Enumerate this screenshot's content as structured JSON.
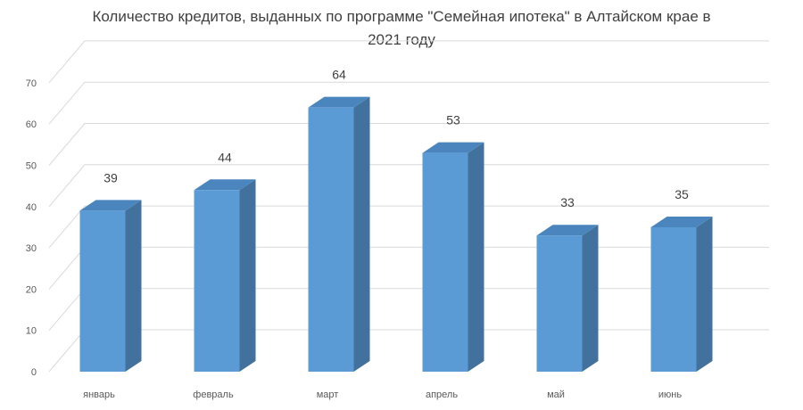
{
  "chart_data": {
    "type": "bar",
    "title": "Количество кредитов, выданных по программе \"Семейная ипотека\" в Алтайском крае в 2021 году",
    "categories": [
      "январь",
      "февраль",
      "март",
      "апрель",
      "май",
      "июнь"
    ],
    "series": [
      {
        "values": [
          39,
          44,
          64,
          53,
          33,
          35
        ]
      }
    ],
    "ylim": [
      0,
      70
    ],
    "yticks": [
      0,
      10,
      20,
      30,
      40,
      50,
      60,
      70
    ],
    "grid": true,
    "three_d": true,
    "data_labels": true,
    "colors": {
      "bar_front": "#5b9bd5",
      "bar_side": "#41719c",
      "bar_top": "#4a86bd",
      "grid": "#d9d9d9",
      "text": "#404040"
    }
  }
}
